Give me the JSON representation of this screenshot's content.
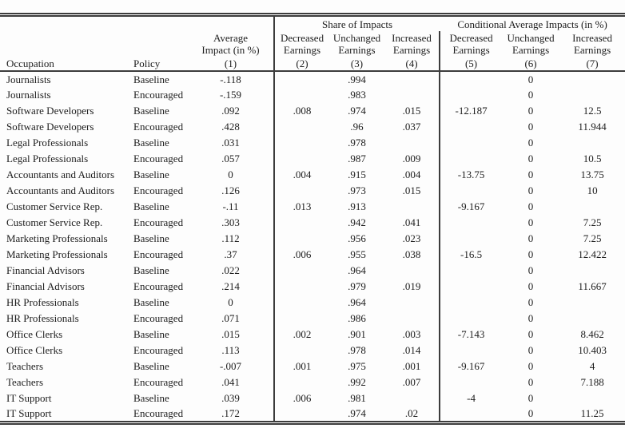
{
  "table": {
    "groups": {
      "share": "Share of Impacts",
      "conditional": "Conditional Average Impacts (in %)"
    },
    "headers": {
      "occupation": "Occupation",
      "policy": "Policy",
      "avg_impact": "Average\nImpact (in %)",
      "decreased": "Decreased\nEarnings",
      "unchanged": "Unchanged\nEarnings",
      "increased": "Increased\nEarnings",
      "n1": "(1)",
      "n2": "(2)",
      "n3": "(3)",
      "n4": "(4)",
      "n5": "(5)",
      "n6": "(6)",
      "n7": "(7)"
    },
    "column_ids": [
      "occupation",
      "policy",
      "avg-impact",
      "share-decreased",
      "share-unchanged",
      "share-increased",
      "cond-decreased",
      "cond-unchanged",
      "cond-increased"
    ],
    "rows": [
      [
        "Journalists",
        "Baseline",
        "-.118",
        "",
        ".994",
        "",
        "",
        "0",
        ""
      ],
      [
        "Journalists",
        "Encouraged",
        "-.159",
        "",
        ".983",
        "",
        "",
        "0",
        ""
      ],
      [
        "Software Developers",
        "Baseline",
        ".092",
        ".008",
        ".974",
        ".015",
        "-12.187",
        "0",
        "12.5"
      ],
      [
        "Software Developers",
        "Encouraged",
        ".428",
        "",
        ".96",
        ".037",
        "",
        "0",
        "11.944"
      ],
      [
        "Legal Professionals",
        "Baseline",
        ".031",
        "",
        ".978",
        "",
        "",
        "0",
        ""
      ],
      [
        "Legal Professionals",
        "Encouraged",
        ".057",
        "",
        ".987",
        ".009",
        "",
        "0",
        "10.5"
      ],
      [
        "Accountants and Auditors",
        "Baseline",
        "0",
        ".004",
        ".915",
        ".004",
        "-13.75",
        "0",
        "13.75"
      ],
      [
        "Accountants and Auditors",
        "Encouraged",
        ".126",
        "",
        ".973",
        ".015",
        "",
        "0",
        "10"
      ],
      [
        "Customer Service Rep.",
        "Baseline",
        "-.11",
        ".013",
        ".913",
        "",
        "-9.167",
        "0",
        ""
      ],
      [
        "Customer Service Rep.",
        "Encouraged",
        ".303",
        "",
        ".942",
        ".041",
        "",
        "0",
        "7.25"
      ],
      [
        "Marketing Professionals",
        "Baseline",
        ".112",
        "",
        ".956",
        ".023",
        "",
        "0",
        "7.25"
      ],
      [
        "Marketing Professionals",
        "Encouraged",
        ".37",
        ".006",
        ".955",
        ".038",
        "-16.5",
        "0",
        "12.422"
      ],
      [
        "Financial Advisors",
        "Baseline",
        ".022",
        "",
        ".964",
        "",
        "",
        "0",
        ""
      ],
      [
        "Financial Advisors",
        "Encouraged",
        ".214",
        "",
        ".979",
        ".019",
        "",
        "0",
        "11.667"
      ],
      [
        "HR Professionals",
        "Baseline",
        "0",
        "",
        ".964",
        "",
        "",
        "0",
        ""
      ],
      [
        "HR Professionals",
        "Encouraged",
        ".071",
        "",
        ".986",
        "",
        "",
        "0",
        ""
      ],
      [
        "Office Clerks",
        "Baseline",
        ".015",
        ".002",
        ".901",
        ".003",
        "-7.143",
        "0",
        "8.462"
      ],
      [
        "Office Clerks",
        "Encouraged",
        ".113",
        "",
        ".978",
        ".014",
        "",
        "0",
        "10.403"
      ],
      [
        "Teachers",
        "Baseline",
        "-.007",
        ".001",
        ".975",
        ".001",
        "-9.167",
        "0",
        "4"
      ],
      [
        "Teachers",
        "Encouraged",
        ".041",
        "",
        ".992",
        ".007",
        "",
        "0",
        "7.188"
      ],
      [
        "IT Support",
        "Baseline",
        ".039",
        ".006",
        ".981",
        "",
        "-4",
        "0",
        ""
      ],
      [
        "IT Support",
        "Encouraged",
        ".172",
        "",
        ".974",
        ".02",
        "",
        "0",
        "11.25"
      ]
    ]
  },
  "colors": {
    "rule": "#3c3c3c",
    "text": "#1d1d1d",
    "background": "#fdfdfd"
  }
}
